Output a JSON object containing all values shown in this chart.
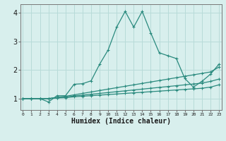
{
  "xlabel": "Humidex (Indice chaleur)",
  "x": [
    0,
    1,
    2,
    3,
    4,
    5,
    6,
    7,
    8,
    9,
    10,
    11,
    12,
    13,
    14,
    15,
    16,
    17,
    18,
    19,
    20,
    21,
    22,
    23
  ],
  "line1": [
    1.0,
    1.0,
    1.0,
    0.88,
    1.1,
    1.1,
    1.5,
    1.52,
    1.62,
    2.2,
    2.7,
    3.5,
    4.05,
    3.5,
    4.05,
    3.3,
    2.6,
    2.5,
    2.4,
    1.7,
    1.4,
    1.6,
    1.85,
    2.2
  ],
  "line2": [
    1.0,
    1.0,
    1.0,
    1.0,
    1.04,
    1.08,
    1.13,
    1.18,
    1.23,
    1.28,
    1.33,
    1.38,
    1.43,
    1.48,
    1.53,
    1.58,
    1.63,
    1.68,
    1.73,
    1.78,
    1.83,
    1.88,
    1.93,
    2.1
  ],
  "line3": [
    1.0,
    1.0,
    1.0,
    1.0,
    1.03,
    1.055,
    1.09,
    1.12,
    1.15,
    1.18,
    1.21,
    1.24,
    1.27,
    1.3,
    1.33,
    1.36,
    1.39,
    1.42,
    1.45,
    1.48,
    1.51,
    1.54,
    1.6,
    1.68
  ],
  "line4": [
    1.0,
    1.0,
    1.0,
    1.0,
    1.02,
    1.03,
    1.06,
    1.08,
    1.1,
    1.12,
    1.14,
    1.16,
    1.18,
    1.2,
    1.22,
    1.24,
    1.26,
    1.28,
    1.3,
    1.32,
    1.34,
    1.36,
    1.4,
    1.48
  ],
  "line_color": "#2a8a7e",
  "bg_color": "#d8efed",
  "grid_color": "#b8dbd8",
  "ylim": [
    0.6,
    4.3
  ],
  "xlim": [
    -0.3,
    23.3
  ],
  "yticks": [
    1,
    2,
    3,
    4
  ],
  "xticks": [
    0,
    1,
    2,
    3,
    4,
    5,
    6,
    7,
    8,
    9,
    10,
    11,
    12,
    13,
    14,
    15,
    16,
    17,
    18,
    19,
    20,
    21,
    22,
    23
  ]
}
